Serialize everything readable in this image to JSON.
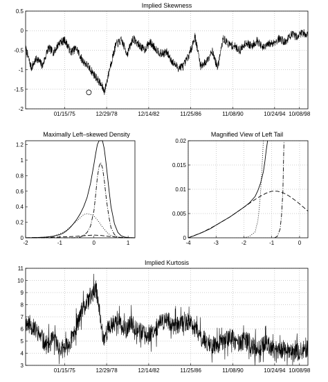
{
  "chart_data": [
    {
      "id": "skew",
      "type": "line",
      "title": "Implied Skewness",
      "ylim": [
        -2,
        0.5
      ],
      "y_ticks": [
        -2,
        -1.5,
        -1,
        -0.5,
        0,
        0.5
      ],
      "x_ticks": [
        "01/15/75",
        "12/29/78",
        "12/14/82",
        "11/25/86",
        "11/08/90",
        "10/24/94",
        "10/08/98"
      ],
      "grid": true,
      "series": [
        {
          "x": [
            0,
            0.02,
            0.04,
            0.06,
            0.08,
            0.1,
            0.12,
            0.14,
            0.16,
            0.18,
            0.2,
            0.22,
            0.24,
            0.26,
            0.28,
            0.3,
            0.32,
            0.34,
            0.36,
            0.38,
            0.4,
            0.42,
            0.44,
            0.46,
            0.48,
            0.5,
            0.52,
            0.54,
            0.56,
            0.58,
            0.6,
            0.62,
            0.64,
            0.66,
            0.68,
            0.7,
            0.72,
            0.74,
            0.76,
            0.78,
            0.8,
            0.82,
            0.84,
            0.86,
            0.88,
            0.9,
            0.92,
            0.94,
            0.96,
            0.98,
            1.0
          ],
          "values": [
            -0.45,
            -0.95,
            -0.7,
            -0.9,
            -0.45,
            -0.55,
            -0.3,
            -0.25,
            -0.55,
            -0.45,
            -0.75,
            -0.9,
            -1.1,
            -1.3,
            -1.55,
            -0.9,
            -0.35,
            -0.25,
            -0.6,
            -0.2,
            -0.35,
            -0.5,
            -0.3,
            -0.45,
            -0.6,
            -0.55,
            -0.8,
            -0.95,
            -0.9,
            -0.6,
            -0.15,
            -0.9,
            -0.8,
            -0.5,
            -0.95,
            -0.2,
            -0.35,
            -0.4,
            -0.5,
            -0.3,
            -0.4,
            -0.25,
            -0.45,
            -0.35,
            -0.3,
            -0.2,
            -0.3,
            -0.1,
            -0.15,
            -0.05,
            -0.1
          ]
        }
      ],
      "marker": {
        "x": 0.224,
        "y": -1.58,
        "shape": "circle"
      }
    },
    {
      "id": "density",
      "type": "line",
      "title": "Maximally Left–skewed Density",
      "xlim": [
        -2,
        1.2
      ],
      "ylim": [
        0,
        1.25
      ],
      "x_ticks": [
        -2,
        -1,
        0,
        1
      ],
      "y_ticks": [
        0,
        0.2,
        0.4,
        0.6,
        0.8,
        1,
        1.2
      ],
      "grid": false,
      "series": [
        {
          "style": "solid",
          "x": [
            -2,
            -1.8,
            -1.6,
            -1.4,
            -1.2,
            -1.0,
            -0.9,
            -0.8,
            -0.7,
            -0.6,
            -0.5,
            -0.4,
            -0.3,
            -0.2,
            -0.1,
            0,
            0.05,
            0.1,
            0.15,
            0.2,
            0.25,
            0.3,
            0.35,
            0.4,
            0.45,
            0.5,
            0.6,
            0.7,
            0.8,
            0.9,
            1.0,
            1.2
          ],
          "values": [
            0,
            0.002,
            0.005,
            0.01,
            0.02,
            0.04,
            0.06,
            0.09,
            0.13,
            0.18,
            0.24,
            0.31,
            0.4,
            0.52,
            0.7,
            0.95,
            1.08,
            1.2,
            1.28,
            1.3,
            1.26,
            1.15,
            0.98,
            0.78,
            0.58,
            0.4,
            0.18,
            0.07,
            0.025,
            0.01,
            0.004,
            0
          ]
        },
        {
          "style": "dashdot",
          "x": [
            -2,
            -0.6,
            -0.4,
            -0.3,
            -0.2,
            -0.1,
            0,
            0.05,
            0.1,
            0.15,
            0.2,
            0.25,
            0.3,
            0.35,
            0.4,
            0.45,
            0.5,
            0.6,
            0.7,
            0.8,
            1.2
          ],
          "values": [
            0,
            0,
            0.01,
            0.03,
            0.07,
            0.15,
            0.35,
            0.55,
            0.78,
            0.92,
            0.97,
            0.9,
            0.75,
            0.55,
            0.38,
            0.24,
            0.13,
            0.04,
            0.01,
            0,
            0
          ]
        },
        {
          "style": "dotted",
          "x": [
            -2,
            -1.5,
            -1.2,
            -1.0,
            -0.8,
            -0.6,
            -0.5,
            -0.4,
            -0.3,
            -0.2,
            -0.1,
            0,
            0.1,
            0.2,
            0.3,
            0.4,
            0.5,
            0.6,
            0.8,
            1.0,
            1.2
          ],
          "values": [
            0,
            0.005,
            0.02,
            0.05,
            0.1,
            0.18,
            0.22,
            0.26,
            0.3,
            0.31,
            0.3,
            0.28,
            0.23,
            0.17,
            0.11,
            0.06,
            0.03,
            0.015,
            0.003,
            0,
            0
          ]
        },
        {
          "style": "dashed",
          "x": [
            -2,
            -1.0,
            -0.5,
            -0.2,
            0,
            0.2,
            0.4,
            0.6,
            0.8,
            1.2
          ],
          "values": [
            0.002,
            0.01,
            0.02,
            0.03,
            0.035,
            0.03,
            0.02,
            0.012,
            0.005,
            0.001
          ]
        }
      ]
    },
    {
      "id": "tail",
      "type": "line",
      "title": "Magnified View of Left Tail",
      "xlim": [
        -4,
        0.3
      ],
      "ylim": [
        0,
        0.02
      ],
      "x_ticks": [
        -4,
        -3,
        -2,
        -1,
        0
      ],
      "y_ticks": [
        0,
        0.005,
        0.01,
        0.015,
        0.02
      ],
      "grid": true,
      "series": [
        {
          "style": "solid",
          "x": [
            -4,
            -3.8,
            -3.5,
            -3.2,
            -3.0,
            -2.8,
            -2.5,
            -2.2,
            -2.0,
            -1.8,
            -1.6,
            -1.5,
            -1.4,
            -1.3,
            -1.25,
            -1.2,
            -1.15
          ],
          "values": [
            0,
            0.0004,
            0.0011,
            0.0019,
            0.0026,
            0.0033,
            0.0043,
            0.0055,
            0.0063,
            0.0072,
            0.0085,
            0.0097,
            0.0113,
            0.0136,
            0.0155,
            0.018,
            0.02
          ]
        },
        {
          "style": "dashed",
          "x": [
            -4,
            -3.5,
            -3.0,
            -2.5,
            -2.0,
            -1.8,
            -1.6,
            -1.4,
            -1.2,
            -1.0,
            -0.8,
            -0.6,
            -0.4,
            -0.2,
            0,
            0.2,
            0.3
          ],
          "values": [
            0,
            0.0011,
            0.0026,
            0.0043,
            0.0063,
            0.0071,
            0.0079,
            0.0086,
            0.0092,
            0.0096,
            0.0096,
            0.0093,
            0.0087,
            0.0079,
            0.007,
            0.006,
            0.0055
          ]
        },
        {
          "style": "dotted",
          "x": [
            -2,
            -1.8,
            -1.6,
            -1.5,
            -1.45,
            -1.4,
            -1.35,
            -1.3
          ],
          "values": [
            0,
            0.0003,
            0.0012,
            0.0035,
            0.006,
            0.0095,
            0.0145,
            0.02
          ]
        },
        {
          "style": "dashdot",
          "x": [
            -0.9,
            -0.8,
            -0.7,
            -0.65,
            -0.6,
            -0.58,
            -0.56
          ],
          "values": [
            0,
            0.0003,
            0.0018,
            0.0045,
            0.0095,
            0.015,
            0.02
          ]
        }
      ]
    },
    {
      "id": "kurt",
      "type": "line",
      "title": "Implied Kurtosis",
      "ylim": [
        3,
        11
      ],
      "y_ticks": [
        3,
        4,
        5,
        6,
        7,
        8,
        9,
        10,
        11
      ],
      "x_ticks": [
        "01/15/75",
        "12/29/78",
        "12/14/82",
        "11/25/86",
        "11/08/90",
        "10/24/94",
        "10/08/98"
      ],
      "grid": true,
      "series": [
        {
          "x": [
            0,
            0.025,
            0.05,
            0.075,
            0.1,
            0.125,
            0.15,
            0.175,
            0.2,
            0.225,
            0.25,
            0.275,
            0.3,
            0.325,
            0.35,
            0.375,
            0.4,
            0.425,
            0.45,
            0.475,
            0.5,
            0.525,
            0.55,
            0.575,
            0.6,
            0.625,
            0.65,
            0.675,
            0.7,
            0.725,
            0.75,
            0.775,
            0.8,
            0.825,
            0.85,
            0.875,
            0.9,
            0.925,
            0.95,
            0.975,
            1.0
          ],
          "values": [
            6.5,
            6.2,
            5.5,
            4.6,
            5.2,
            4.2,
            4.6,
            5.8,
            7.5,
            8.4,
            9.3,
            5.2,
            6.2,
            6.8,
            5.8,
            6.4,
            6.0,
            5.4,
            5.8,
            6.4,
            6.8,
            6.2,
            6.4,
            6.6,
            6.0,
            5.2,
            4.8,
            4.6,
            5.0,
            5.4,
            4.8,
            5.0,
            4.6,
            4.4,
            4.8,
            4.4,
            4.2,
            4.4,
            4.0,
            4.2,
            4.4
          ]
        }
      ]
    }
  ]
}
